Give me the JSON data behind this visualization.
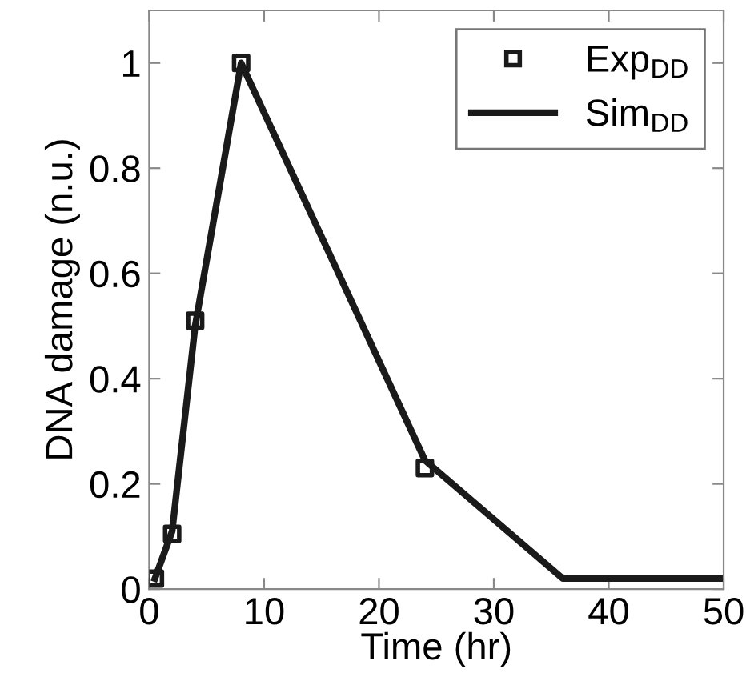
{
  "chart_data": {
    "type": "line",
    "xlabel": "Time (hr)",
    "ylabel": "DNA damage (n.u.)",
    "xlim": [
      0,
      50
    ],
    "ylim": [
      0,
      1.1
    ],
    "xticks": [
      0,
      10,
      20,
      30,
      40,
      50
    ],
    "yticks": [
      0,
      0.2,
      0.4,
      0.6,
      0.8,
      1
    ],
    "grid": false,
    "legend": "top right",
    "series": [
      {
        "name": "Exp$_{DD}$",
        "type": "scatter",
        "marker": "square",
        "color": "#1a1a1a",
        "x": [
          0.5,
          2,
          4,
          8,
          24
        ],
        "values": [
          0.02,
          0.105,
          0.51,
          1.0,
          0.23
        ]
      },
      {
        "name": "Sim$_{DD}$",
        "marker": "none",
        "line_style": "solid",
        "color": "#1a1a1a",
        "x": [
          0.5,
          2,
          4,
          8,
          24,
          36,
          50
        ],
        "values": [
          0.02,
          0.11,
          0.5,
          1.0,
          0.245,
          0.02,
          0.02
        ]
      }
    ]
  }
}
